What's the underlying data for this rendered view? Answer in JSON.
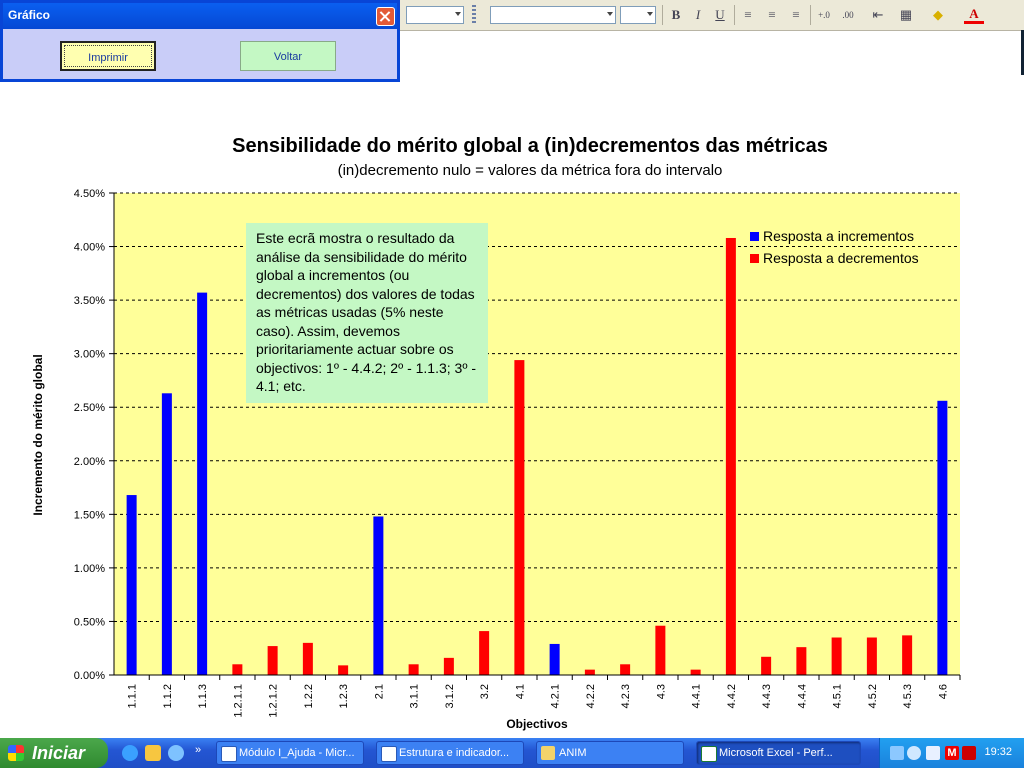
{
  "dialog": {
    "title": "Gráfico",
    "print_label": "Imprimir",
    "back_label": "Voltar"
  },
  "toolbar": {
    "bold": "B",
    "italic": "I",
    "underline": "U",
    "font_color_label": "A"
  },
  "note_text": "Este ecrã mostra o resultado da análise da sensibilidade do mérito global a incrementos (ou decrementos) dos valores de todas as métricas usadas (5% neste caso). Assim, devemos prioritariamente actuar sobre os objectivos: 1º - 4.4.2; 2º - 1.1.3; 3º - 4.1; etc.",
  "chart_data": {
    "type": "bar",
    "title": "Sensibilidade do mérito global a (in)decrementos das métricas",
    "subtitle": "(in)decremento nulo = valores da métrica fora do intervalo",
    "xlabel": "Objectivos",
    "ylabel": "Incremento do mérito global",
    "ylim": [
      0,
      0.045
    ],
    "ytick_step": 0.005,
    "yticks": [
      "0.00%",
      "0.50%",
      "1.00%",
      "1.50%",
      "2.00%",
      "2.50%",
      "3.00%",
      "3.50%",
      "4.00%",
      "4.50%"
    ],
    "grid": true,
    "legend_position": "top-right",
    "background_color": "#FFFF99",
    "categories": [
      "1.1.1",
      "1.1.2",
      "1.1.3",
      "1.2.1.1",
      "1.2.1.2",
      "1.2.2",
      "1.2.3",
      "2.1",
      "3.1.1",
      "3.1.2",
      "3.2",
      "4.1",
      "4.2.1",
      "4.2.2",
      "4.2.3",
      "4.3",
      "4.4.1",
      "4.4.2",
      "4.4.3",
      "4.4.4",
      "4.5.1",
      "4.5.2",
      "4.5.3",
      "4.6"
    ],
    "series": [
      {
        "name": "Resposta a incrementos",
        "color": "#0000FF",
        "values": [
          0.0168,
          0.0263,
          0.0357,
          0,
          0,
          0,
          0,
          0.0148,
          0,
          0,
          0,
          0,
          0.0029,
          0,
          0,
          0,
          0,
          0,
          0,
          0,
          0,
          0,
          0,
          0.0256
        ]
      },
      {
        "name": "Resposta a decrementos",
        "color": "#FF0000",
        "values": [
          0,
          0,
          0,
          0.001,
          0.0027,
          0.003,
          0.0009,
          0,
          0.001,
          0.0016,
          0.0041,
          0.0294,
          0,
          0.0005,
          0.001,
          0.0046,
          0.0005,
          0.0408,
          0.0017,
          0.0026,
          0.0035,
          0.0035,
          0.0037,
          0
        ]
      }
    ]
  },
  "taskbar": {
    "start_label": "Iniciar",
    "tasks": [
      "Módulo I_Ajuda - Micr...",
      "Estrutura e indicador...",
      "ANIM",
      "Microsoft Excel - Perf..."
    ],
    "clock": "19:32"
  }
}
